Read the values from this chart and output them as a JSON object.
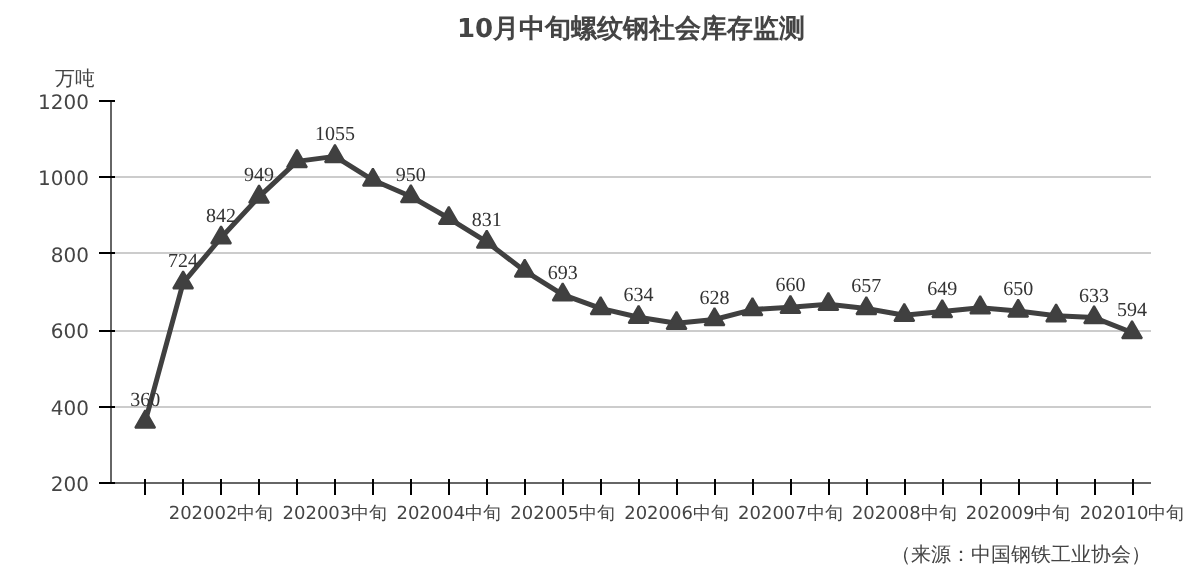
{
  "chart_data": {
    "type": "line",
    "title": "10月中旬螺纹钢社会库存监测",
    "ylabel": "万吨",
    "annotations": [
      "（来源：中国钢铁工业协会）"
    ],
    "categories": [
      null,
      null,
      "202002中旬",
      null,
      null,
      "202003中旬",
      null,
      null,
      "202004中旬",
      null,
      null,
      "202005中旬",
      null,
      null,
      "202006中旬",
      null,
      null,
      "202007中旬",
      null,
      null,
      "202008中旬",
      null,
      null,
      "202009中旬",
      null,
      null,
      "202010中旬"
    ],
    "series": [
      {
        "color": "#404040",
        "values": [
          360,
          724,
          842,
          949,
          1042,
          1055,
          993,
          950,
          893,
          831,
          755,
          693,
          657,
          634,
          618,
          628,
          654,
          660,
          668,
          657,
          639,
          649,
          659,
          650,
          638,
          633,
          594
        ],
        "value_labels": [
          "360",
          "724",
          "842",
          "949",
          null,
          "1055",
          null,
          "950",
          null,
          "831",
          null,
          "693",
          null,
          "634",
          null,
          "628",
          null,
          "660",
          null,
          "657",
          null,
          "649",
          null,
          "650",
          null,
          "633",
          "594"
        ]
      }
    ],
    "ylim": [
      200,
      1200
    ],
    "yticks": [
      200,
      400,
      600,
      800,
      1000,
      1200
    ],
    "grid": "y",
    "marker": "triangle",
    "line_style": "solid"
  }
}
